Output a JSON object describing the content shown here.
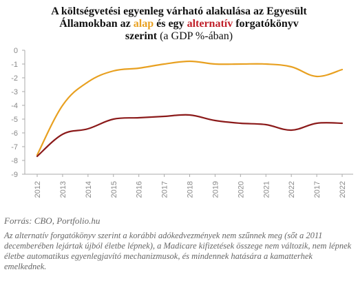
{
  "title": {
    "line1": "A költségvetési egyenleg várható alakulása az Egyesült",
    "line2_pre": "Államokban az ",
    "line2_alap": "alap",
    "line2_mid": " és egy ",
    "line2_alt": "alternatív",
    "line2_post": " forgatókönyv",
    "line3_bold": "szerint",
    "line3_unit": " (a GDP %-ában)"
  },
  "source": "Forrás: CBO, Portfolio.hu",
  "note": "Az alternatív forgatókönyv szerint a korábbi adókedvezmények nem szűnnek meg (sőt a 2011 decemberében lejártak újból életbe lépnek), a Madicare kifizetések összege nem változik, nem lépnek életbe automatikus egyenlegjavító mechanizmusok, és mindennek hatására a kamatterhek emelkednek.",
  "colors": {
    "alap": "#e8a020",
    "alternativ": "#8b1a1a",
    "axis": "#aaaaaa"
  },
  "chart_data": {
    "type": "line",
    "categories": [
      "2012",
      "2013",
      "2014",
      "2015",
      "2016",
      "2017",
      "2018",
      "2019",
      "2020",
      "2021",
      "2022",
      "2017",
      "2022"
    ],
    "ylim": [
      -9,
      0
    ],
    "yticks": [
      0,
      -1,
      -2,
      -3,
      -4,
      -5,
      -6,
      -7,
      -8,
      -9
    ],
    "series": [
      {
        "key": "alap",
        "values": [
          -7.6,
          -4.0,
          -2.3,
          -1.5,
          -1.3,
          -1.0,
          -0.8,
          -1.0,
          -1.0,
          -1.0,
          -1.2,
          -1.9,
          -1.4
        ]
      },
      {
        "key": "alternativ",
        "values": [
          -7.7,
          -6.1,
          -5.7,
          -5.0,
          -4.9,
          -4.8,
          -4.7,
          -5.1,
          -5.3,
          -5.4,
          -5.8,
          -5.3,
          -5.3
        ]
      }
    ]
  }
}
